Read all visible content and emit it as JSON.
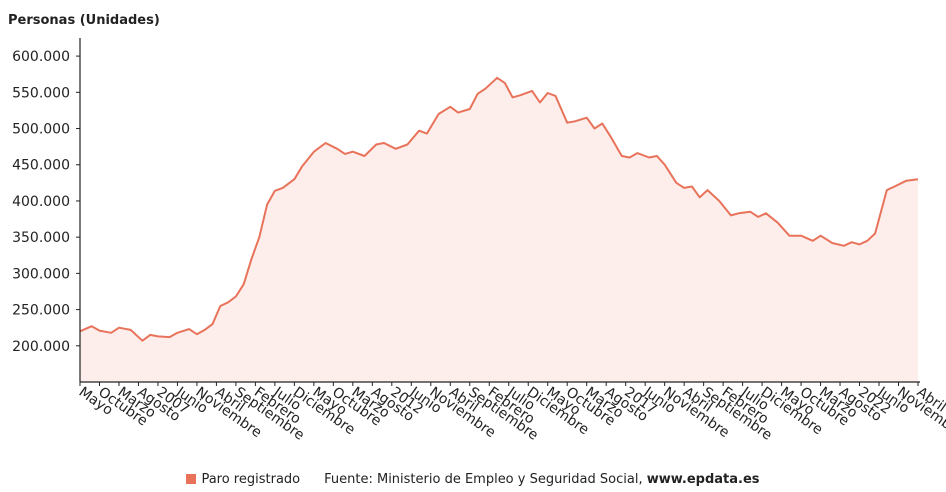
{
  "chart_data": {
    "type": "area",
    "unit_label": "Personas (Unidades)",
    "ylim": [
      150000,
      625000
    ],
    "yticks": [
      200000,
      250000,
      300000,
      350000,
      400000,
      450000,
      500000,
      550000,
      600000
    ],
    "ytick_labels": [
      "200.000",
      "250.000",
      "300.000",
      "350.000",
      "400.000",
      "450.000",
      "500.000",
      "550.000",
      "600.000"
    ],
    "x_start": "2006-05",
    "x_end": "2024-04",
    "xtick_labels": [
      {
        "label": "Mayo",
        "date": "2006-05"
      },
      {
        "label": "Octubre",
        "date": "2006-10"
      },
      {
        "label": "Marzo",
        "date": "2007-03"
      },
      {
        "label": "Agosto",
        "date": "2007-08"
      },
      {
        "label": "2007",
        "date": "2008-01"
      },
      {
        "label": "Junio",
        "date": "2008-06"
      },
      {
        "label": "Noviembre",
        "date": "2008-11"
      },
      {
        "label": "Abril",
        "date": "2009-04"
      },
      {
        "label": "Septiembre",
        "date": "2009-09"
      },
      {
        "label": "Febrero",
        "date": "2010-02"
      },
      {
        "label": "Julio",
        "date": "2010-07"
      },
      {
        "label": "Diciembre",
        "date": "2010-12"
      },
      {
        "label": "Mayo",
        "date": "2011-05"
      },
      {
        "label": "Octubre",
        "date": "2011-10"
      },
      {
        "label": "Marzo",
        "date": "2012-03"
      },
      {
        "label": "Agosto",
        "date": "2012-08"
      },
      {
        "label": "2012",
        "date": "2013-01"
      },
      {
        "label": "Junio",
        "date": "2013-06"
      },
      {
        "label": "Noviembre",
        "date": "2013-11"
      },
      {
        "label": "Abril",
        "date": "2014-04"
      },
      {
        "label": "Septiembre",
        "date": "2014-09"
      },
      {
        "label": "Febrero",
        "date": "2015-02"
      },
      {
        "label": "Julio",
        "date": "2015-07"
      },
      {
        "label": "Diciembre",
        "date": "2015-12"
      },
      {
        "label": "Mayo",
        "date": "2016-05"
      },
      {
        "label": "Octubre",
        "date": "2016-10"
      },
      {
        "label": "Marzo",
        "date": "2017-03"
      },
      {
        "label": "Agosto",
        "date": "2017-08"
      },
      {
        "label": "2017",
        "date": "2018-01"
      },
      {
        "label": "Junio",
        "date": "2018-06"
      },
      {
        "label": "Noviembre",
        "date": "2018-11"
      },
      {
        "label": "Abril",
        "date": "2019-04"
      },
      {
        "label": "Septiembre",
        "date": "2019-09"
      },
      {
        "label": "Febrero",
        "date": "2020-02"
      },
      {
        "label": "Julio",
        "date": "2020-07"
      },
      {
        "label": "Diciembre",
        "date": "2020-12"
      },
      {
        "label": "Mayo",
        "date": "2021-05"
      },
      {
        "label": "Octubre",
        "date": "2021-10"
      },
      {
        "label": "Marzo",
        "date": "2022-03"
      },
      {
        "label": "Agosto",
        "date": "2022-08"
      },
      {
        "label": "2022",
        "date": "2023-01"
      },
      {
        "label": "Junio",
        "date": "2023-06"
      },
      {
        "label": "Noviembre",
        "date": "2023-11"
      },
      {
        "label": "Abril",
        "date": "2024-04"
      }
    ],
    "series": [
      {
        "name": "Paro registrado",
        "color": "#e8735a",
        "fill": "#fdeeec",
        "points": [
          [
            "2006-05",
            220000
          ],
          [
            "2006-08",
            227000
          ],
          [
            "2006-10",
            221000
          ],
          [
            "2007-01",
            218000
          ],
          [
            "2007-03",
            225000
          ],
          [
            "2007-06",
            222000
          ],
          [
            "2007-09",
            207000
          ],
          [
            "2007-11",
            215000
          ],
          [
            "2008-01",
            213000
          ],
          [
            "2008-04",
            212000
          ],
          [
            "2008-06",
            218000
          ],
          [
            "2008-09",
            223000
          ],
          [
            "2008-11",
            216000
          ],
          [
            "2009-01",
            222000
          ],
          [
            "2009-03",
            230000
          ],
          [
            "2009-05",
            255000
          ],
          [
            "2009-07",
            260000
          ],
          [
            "2009-09",
            268000
          ],
          [
            "2009-11",
            285000
          ],
          [
            "2010-01",
            320000
          ],
          [
            "2010-03",
            350000
          ],
          [
            "2010-05",
            395000
          ],
          [
            "2010-07",
            414000
          ],
          [
            "2010-09",
            418000
          ],
          [
            "2010-12",
            430000
          ],
          [
            "2011-02",
            448000
          ],
          [
            "2011-05",
            468000
          ],
          [
            "2011-08",
            480000
          ],
          [
            "2011-11",
            472000
          ],
          [
            "2012-01",
            465000
          ],
          [
            "2012-03",
            468000
          ],
          [
            "2012-06",
            462000
          ],
          [
            "2012-09",
            478000
          ],
          [
            "2012-11",
            480000
          ],
          [
            "2013-02",
            472000
          ],
          [
            "2013-05",
            478000
          ],
          [
            "2013-08",
            497000
          ],
          [
            "2013-10",
            493000
          ],
          [
            "2014-01",
            520000
          ],
          [
            "2014-04",
            530000
          ],
          [
            "2014-06",
            522000
          ],
          [
            "2014-09",
            527000
          ],
          [
            "2014-11",
            548000
          ],
          [
            "2015-01",
            555000
          ],
          [
            "2015-04",
            570000
          ],
          [
            "2015-06",
            563000
          ],
          [
            "2015-08",
            543000
          ],
          [
            "2015-10",
            546000
          ],
          [
            "2016-01",
            552000
          ],
          [
            "2016-03",
            536000
          ],
          [
            "2016-05",
            549000
          ],
          [
            "2016-07",
            545000
          ],
          [
            "2016-10",
            508000
          ],
          [
            "2016-12",
            510000
          ],
          [
            "2017-03",
            515000
          ],
          [
            "2017-05",
            500000
          ],
          [
            "2017-07",
            507000
          ],
          [
            "2017-09",
            490000
          ],
          [
            "2017-12",
            462000
          ],
          [
            "2018-02",
            460000
          ],
          [
            "2018-04",
            466000
          ],
          [
            "2018-07",
            460000
          ],
          [
            "2018-09",
            462000
          ],
          [
            "2018-11",
            450000
          ],
          [
            "2019-02",
            425000
          ],
          [
            "2019-04",
            418000
          ],
          [
            "2019-06",
            420000
          ],
          [
            "2019-08",
            405000
          ],
          [
            "2019-10",
            415000
          ],
          [
            "2020-01",
            400000
          ],
          [
            "2020-04",
            380000
          ],
          [
            "2020-06",
            383000
          ],
          [
            "2020-09",
            385000
          ],
          [
            "2020-11",
            378000
          ],
          [
            "2021-01",
            383000
          ],
          [
            "2021-04",
            370000
          ],
          [
            "2021-07",
            352000
          ],
          [
            "2021-10",
            352000
          ],
          [
            "2022-01",
            345000
          ],
          [
            "2022-03",
            352000
          ],
          [
            "2022-06",
            342000
          ],
          [
            "2022-09",
            338000
          ],
          [
            "2022-11",
            343000
          ],
          [
            "2023-01",
            340000
          ],
          [
            "2023-03",
            345000
          ],
          [
            "2023-05",
            355000
          ],
          [
            "2023-08",
            415000
          ],
          [
            "2023-10",
            420000
          ],
          [
            "2024-01",
            428000
          ],
          [
            "2024-04",
            430000
          ]
        ]
      }
    ],
    "grid": false,
    "legend": "bottom-left"
  },
  "legend": {
    "series_label": "Paro registrado"
  },
  "source": {
    "prefix": "Fuente: Ministerio de Empleo y Seguridad Social, ",
    "site": "www.epdata.es"
  }
}
